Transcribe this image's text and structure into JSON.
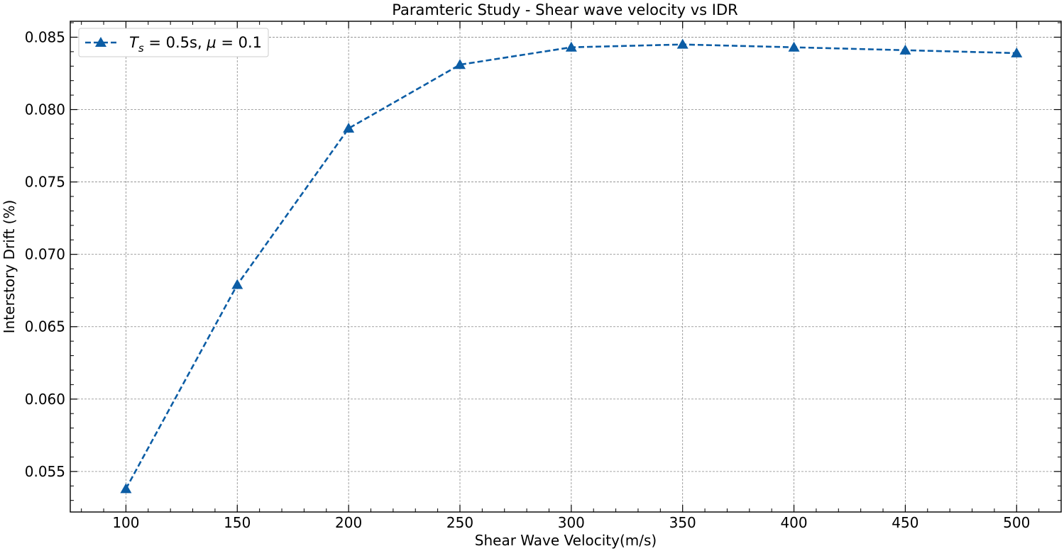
{
  "chart_data": {
    "type": "line",
    "title": "Paramteric Study - Shear wave velocity vs IDR",
    "xlabel": "Shear Wave Velocity(m/s)",
    "ylabel": "Interstory Drift (%)",
    "xlim": [
      75,
      520
    ],
    "ylim": [
      0.0522,
      0.0861
    ],
    "x_ticks": [
      100,
      150,
      200,
      250,
      300,
      350,
      400,
      450,
      500
    ],
    "y_ticks": [
      0.055,
      0.06,
      0.065,
      0.07,
      0.075,
      0.08,
      0.085
    ],
    "x_tick_labels": [
      "100",
      "150",
      "200",
      "250",
      "300",
      "350",
      "400",
      "450",
      "500"
    ],
    "y_tick_labels": [
      "0.055",
      "0.060",
      "0.065",
      "0.070",
      "0.075",
      "0.080",
      "0.085"
    ],
    "grid": true,
    "legend_position": "top-left",
    "series": [
      {
        "name_math": {
          "var": "T",
          "sub": "s",
          "mid": " = 0.5s, ",
          "mu": "μ",
          "tail": " = 0.1"
        },
        "color": "#0c5da5",
        "line_style": "dashed",
        "marker": "triangle-up",
        "x": [
          100,
          150,
          200,
          250,
          300,
          350,
          400,
          450,
          500
        ],
        "y": [
          0.0538,
          0.0679,
          0.0787,
          0.0831,
          0.0843,
          0.0845,
          0.0843,
          0.0841,
          0.0839
        ]
      }
    ]
  }
}
